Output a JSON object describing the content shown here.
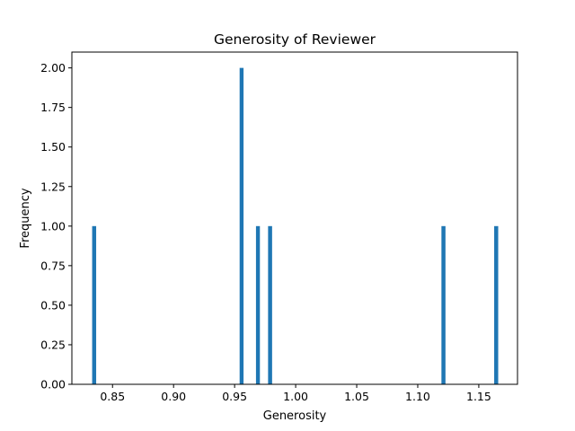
{
  "chart_data": {
    "type": "bar",
    "title": "Generosity of Reviewer",
    "xlabel": "Generosity",
    "ylabel": "Frequency",
    "xlim": [
      0.8167,
      1.1817
    ],
    "ylim": [
      0,
      2.1
    ],
    "bar_color": "#1f77b4",
    "bars": [
      {
        "x_left": 0.8333,
        "x_right": 0.8366,
        "value": 1
      },
      {
        "x_left": 0.9541,
        "x_right": 0.9573,
        "value": 2
      },
      {
        "x_left": 0.9675,
        "x_right": 0.9707,
        "value": 1
      },
      {
        "x_left": 0.9774,
        "x_right": 0.9807,
        "value": 1
      },
      {
        "x_left": 1.1194,
        "x_right": 1.1227,
        "value": 1
      },
      {
        "x_left": 1.1626,
        "x_right": 1.1659,
        "value": 1
      }
    ],
    "x_ticks": [
      {
        "value": 0.85,
        "label": "0.85"
      },
      {
        "value": 0.9,
        "label": "0.90"
      },
      {
        "value": 0.95,
        "label": "0.95"
      },
      {
        "value": 1.0,
        "label": "1.00"
      },
      {
        "value": 1.05,
        "label": "1.05"
      },
      {
        "value": 1.1,
        "label": "1.10"
      },
      {
        "value": 1.15,
        "label": "1.15"
      }
    ],
    "y_ticks": [
      {
        "value": 0.0,
        "label": "0.00"
      },
      {
        "value": 0.25,
        "label": "0.25"
      },
      {
        "value": 0.5,
        "label": "0.50"
      },
      {
        "value": 0.75,
        "label": "0.75"
      },
      {
        "value": 1.0,
        "label": "1.00"
      },
      {
        "value": 1.25,
        "label": "1.25"
      },
      {
        "value": 1.5,
        "label": "1.50"
      },
      {
        "value": 1.75,
        "label": "1.75"
      },
      {
        "value": 2.0,
        "label": "2.00"
      }
    ],
    "grid": false,
    "legend": "none"
  }
}
